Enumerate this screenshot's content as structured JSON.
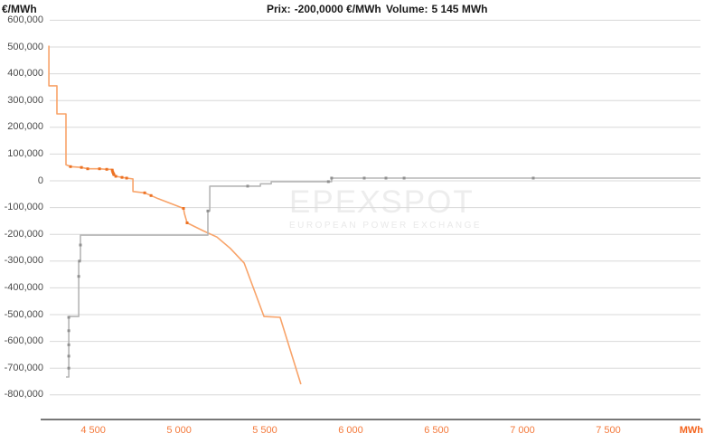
{
  "header": {
    "y_unit": "€/MWh",
    "prix_label": "Prix:",
    "prix_value": "-200,0000 €/MWh",
    "volume_label": "Volume:",
    "volume_value": "5 145 MWh"
  },
  "watermark": {
    "brand_left": "EPE",
    "brand_x": "X",
    "brand_right": "SPOT",
    "subtitle": "EUROPEAN POWER EXCHANGE"
  },
  "x_unit_label": "MWh",
  "colors": {
    "purchase_curve": "#f8a369",
    "purchase_marker": "#ec7224",
    "sell_curve": "#b5b5b5",
    "sell_marker": "#909090",
    "gridline": "#d8d8d8",
    "axis_line": "#4a4a4a",
    "x_tick_text": "#f4793b",
    "y_tick_text": "#4a4a4a"
  },
  "chart_data": {
    "type": "line",
    "xlabel": "MWh",
    "ylabel": "€/MWh",
    "xlim": [
      4247,
      8037
    ],
    "ylim": [
      -800000,
      600000
    ],
    "grid": "horizontal-only",
    "legend": "none",
    "x_ticks": [
      4500,
      5000,
      5500,
      6000,
      6500,
      7000,
      7500
    ],
    "x_tick_labels": [
      "4 500",
      "5 000",
      "5 500",
      "6 000",
      "6 500",
      "7 000",
      "7 500"
    ],
    "y_ticks": [
      600000,
      500000,
      400000,
      300000,
      200000,
      100000,
      0,
      -100000,
      -200000,
      -300000,
      -400000,
      -500000,
      -600000,
      -700000,
      -800000
    ],
    "y_tick_labels": [
      "600,000",
      "500,000",
      "400,000",
      "300,000",
      "200,000",
      "100,000",
      "0",
      "-100,000",
      "-200,000",
      "-300,000",
      "-400,000",
      "-500,000",
      "-600,000",
      "-700,000",
      "-800,000"
    ],
    "crosshair_readout": {
      "price": "-200,0000 €/MWh",
      "volume": "5 145 MWh"
    },
    "series": [
      {
        "name": "purchase-curve",
        "color_key": "purchase_curve",
        "marker_key": "purchase_marker",
        "points": [
          [
            4242,
            505000
          ],
          [
            4242,
            355000
          ],
          [
            4289,
            355000
          ],
          [
            4289,
            250000
          ],
          [
            4342,
            250000
          ],
          [
            4342,
            60000
          ],
          [
            4368,
            53000
          ],
          [
            4432,
            50000
          ],
          [
            4468,
            45000
          ],
          [
            4537,
            45000
          ],
          [
            4579,
            43000
          ],
          [
            4611,
            43000
          ],
          [
            4616,
            33000
          ],
          [
            4621,
            23000
          ],
          [
            4632,
            17000
          ],
          [
            4668,
            13000
          ],
          [
            4695,
            10000
          ],
          [
            4732,
            7000
          ],
          [
            4732,
            -40000
          ],
          [
            4800,
            -45000
          ],
          [
            4837,
            -55000
          ],
          [
            4879,
            -67000
          ],
          [
            5026,
            -103000
          ],
          [
            5032,
            -123000
          ],
          [
            5047,
            -157000
          ],
          [
            5142,
            -187000
          ],
          [
            5221,
            -210000
          ],
          [
            5300,
            -253000
          ],
          [
            5379,
            -307000
          ],
          [
            5495,
            -507000
          ],
          [
            5589,
            -510000
          ],
          [
            5710,
            -760000
          ]
        ],
        "markers": [
          [
            4368,
            53000
          ],
          [
            4432,
            50000
          ],
          [
            4468,
            45000
          ],
          [
            4537,
            45000
          ],
          [
            4579,
            43000
          ],
          [
            4611,
            40000
          ],
          [
            4614,
            33000
          ],
          [
            4618,
            27000
          ],
          [
            4621,
            23000
          ],
          [
            4632,
            17000
          ],
          [
            4668,
            13000
          ],
          [
            4695,
            10000
          ],
          [
            4800,
            -45000
          ],
          [
            4837,
            -55000
          ],
          [
            5026,
            -103000
          ],
          [
            5047,
            -157000
          ]
        ]
      },
      {
        "name": "sell-curve",
        "color_key": "sell_curve",
        "marker_key": "sell_marker",
        "points": [
          [
            4342,
            -733000
          ],
          [
            4358,
            -733000
          ],
          [
            4358,
            -507000
          ],
          [
            4416,
            -507000
          ],
          [
            4416,
            -300000
          ],
          [
            4426,
            -300000
          ],
          [
            4426,
            -203000
          ],
          [
            5168,
            -203000
          ],
          [
            5168,
            -113000
          ],
          [
            5179,
            -113000
          ],
          [
            5179,
            -20000
          ],
          [
            5474,
            -20000
          ],
          [
            5474,
            -11000
          ],
          [
            5537,
            -11000
          ],
          [
            5537,
            -3000
          ],
          [
            5889,
            -3000
          ],
          [
            5889,
            10000
          ],
          [
            8037,
            10000
          ]
        ],
        "markers": [
          [
            4358,
            -700000
          ],
          [
            4358,
            -655000
          ],
          [
            4358,
            -613000
          ],
          [
            4358,
            -560000
          ],
          [
            4358,
            -510000
          ],
          [
            4416,
            -357000
          ],
          [
            4420,
            -300000
          ],
          [
            4426,
            -240000
          ],
          [
            5168,
            -113000
          ],
          [
            5400,
            -20000
          ],
          [
            5870,
            -3000
          ],
          [
            5889,
            10000
          ],
          [
            6079,
            10000
          ],
          [
            6205,
            10000
          ],
          [
            6311,
            10000
          ],
          [
            7063,
            10000
          ]
        ]
      }
    ]
  }
}
